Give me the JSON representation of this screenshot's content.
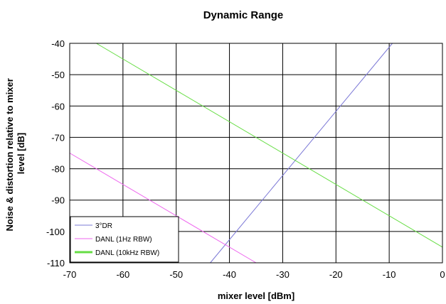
{
  "chart_data": {
    "type": "line",
    "title": "Dynamic Range",
    "xlabel": "mixer level [dBm]",
    "ylabel": "Noise & distortion relative to mixer level [dB]",
    "ylabel_lines": [
      "Noise & distortion relative to mixer",
      "level [dB]"
    ],
    "xlim": [
      -70,
      0
    ],
    "ylim": [
      -110,
      -40
    ],
    "x_ticks": [
      -70,
      -60,
      -50,
      -40,
      -30,
      -20,
      -10,
      0
    ],
    "y_ticks": [
      -40,
      -50,
      -60,
      -70,
      -80,
      -90,
      -100,
      -110
    ],
    "x_tick_labels": [
      "-70",
      "-60",
      "-50",
      "-40",
      "-30",
      "-20",
      "-10",
      "0"
    ],
    "y_tick_labels": [
      "-40",
      "-50",
      "-60",
      "-70",
      "-80",
      "-90",
      "-100",
      "-110"
    ],
    "grid": true,
    "legend_position": "bottom-left",
    "series": [
      {
        "name": "3°DR",
        "color": "#7b78d6",
        "x": [
          -43.6,
          -9.4
        ],
        "y": [
          -110,
          -40
        ]
      },
      {
        "name": "DANL (1Hz RBW)",
        "color": "#ee66ee",
        "x": [
          -70,
          -35
        ],
        "y": [
          -75,
          -110
        ]
      },
      {
        "name": "DANL (10kHz RBW)",
        "color": "#66dd44",
        "x": [
          -65,
          0
        ],
        "y": [
          -40,
          -105
        ]
      }
    ]
  }
}
